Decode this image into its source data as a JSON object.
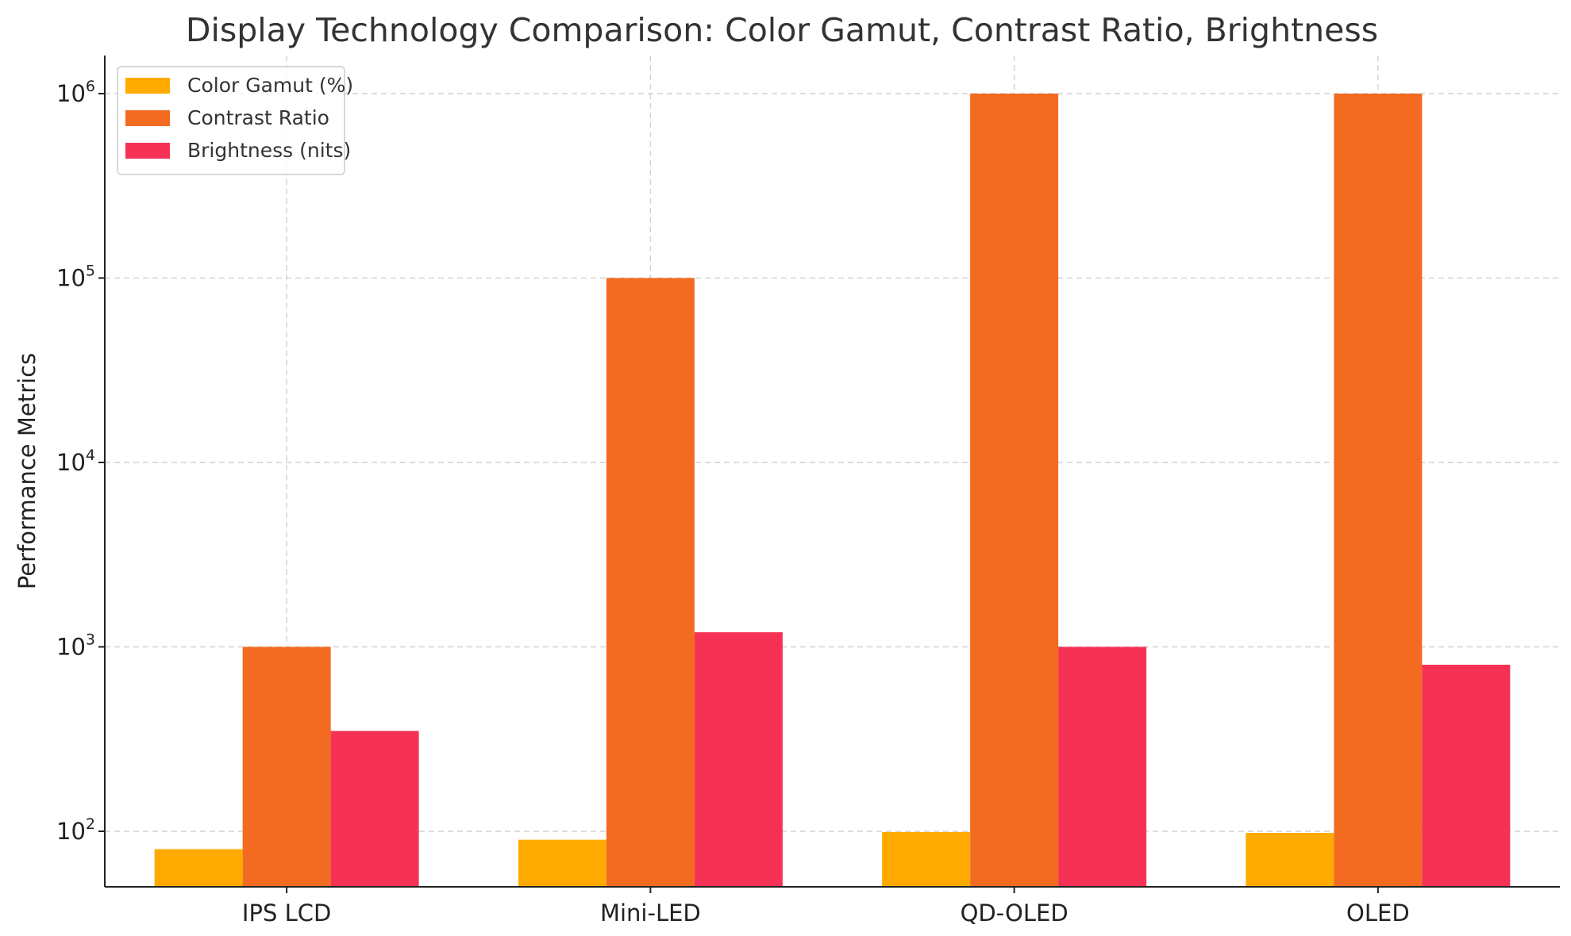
{
  "chart_data": {
    "type": "bar",
    "title": "Display Technology Comparison: Color Gamut, Contrast Ratio, Brightness",
    "xlabel": "",
    "ylabel": "Performance Metrics",
    "yscale": "log",
    "ylim": [
      50,
      1600000
    ],
    "ytick_values": [
      100,
      1000,
      10000,
      100000,
      1000000
    ],
    "ytick_labels": [
      {
        "base": "10",
        "exp": "2"
      },
      {
        "base": "10",
        "exp": "3"
      },
      {
        "base": "10",
        "exp": "4"
      },
      {
        "base": "10",
        "exp": "5"
      },
      {
        "base": "10",
        "exp": "6"
      }
    ],
    "categories": [
      "IPS LCD",
      "Mini-LED",
      "QD-OLED",
      "OLED"
    ],
    "series": [
      {
        "name": "Color Gamut (%)",
        "color": "#FFAA00",
        "values": [
          80,
          90,
          99,
          98
        ]
      },
      {
        "name": "Contrast Ratio",
        "color": "#F26B21",
        "values": [
          1000,
          100000,
          1000000,
          1000000
        ]
      },
      {
        "name": "Brightness (nits)",
        "color": "#F53255",
        "values": [
          350,
          1200,
          1000,
          800
        ]
      }
    ],
    "grid": true,
    "legend": "top-left"
  }
}
